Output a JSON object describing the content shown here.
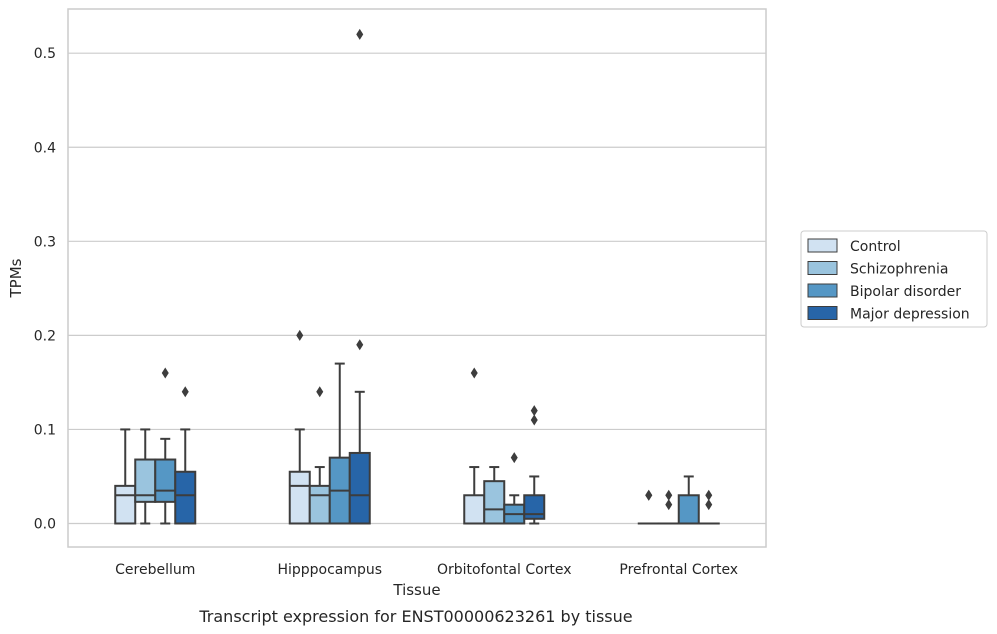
{
  "chart_data": {
    "type": "box",
    "caption": "Transcript expression for ENST00000623261 by tissue",
    "xlabel": "Tissue",
    "ylabel": "TPMs",
    "ylim": [
      -0.025,
      0.547
    ],
    "yticks": [
      0.0,
      0.1,
      0.2,
      0.3,
      0.4,
      0.5
    ],
    "ytick_labels": [
      "0.0",
      "0.1",
      "0.2",
      "0.3",
      "0.4",
      "0.5"
    ],
    "grid": "horizontal",
    "legend_position": "right",
    "categories": [
      "Cerebellum",
      "Hipppocampus",
      "Orbitofontal Cortex",
      "Prefrontal Cortex"
    ],
    "series": [
      {
        "name": "Control",
        "color": "#d1e2f2",
        "boxes": [
          {
            "whisker_low": 0.0,
            "q1": 0.0,
            "median": 0.03,
            "q3": 0.04,
            "whisker_high": 0.1,
            "outliers": []
          },
          {
            "whisker_low": 0.0,
            "q1": 0.0,
            "median": 0.04,
            "q3": 0.055,
            "whisker_high": 0.1,
            "outliers": [
              0.2
            ]
          },
          {
            "whisker_low": 0.0,
            "q1": 0.0,
            "median": 0.0,
            "q3": 0.03,
            "whisker_high": 0.06,
            "outliers": [
              0.16
            ]
          },
          {
            "whisker_low": 0.0,
            "q1": 0.0,
            "median": 0.0,
            "q3": 0.0,
            "whisker_high": 0.0,
            "outliers": [
              0.03,
              0.03
            ]
          }
        ]
      },
      {
        "name": "Schizophrenia",
        "color": "#9ac4de",
        "boxes": [
          {
            "whisker_low": 0.0,
            "q1": 0.023,
            "median": 0.03,
            "q3": 0.068,
            "whisker_high": 0.1,
            "outliers": []
          },
          {
            "whisker_low": 0.0,
            "q1": 0.0,
            "median": 0.03,
            "q3": 0.04,
            "whisker_high": 0.06,
            "outliers": [
              0.14
            ]
          },
          {
            "whisker_low": 0.0,
            "q1": 0.0,
            "median": 0.015,
            "q3": 0.045,
            "whisker_high": 0.06,
            "outliers": []
          },
          {
            "whisker_low": 0.0,
            "q1": 0.0,
            "median": 0.0,
            "q3": 0.0,
            "whisker_high": 0.0,
            "outliers": [
              0.02,
              0.03
            ]
          }
        ]
      },
      {
        "name": "Bipolar disorder",
        "color": "#5597c5",
        "boxes": [
          {
            "whisker_low": 0.0,
            "q1": 0.023,
            "median": 0.035,
            "q3": 0.068,
            "whisker_high": 0.09,
            "outliers": [
              0.16
            ]
          },
          {
            "whisker_low": 0.0,
            "q1": 0.0,
            "median": 0.035,
            "q3": 0.07,
            "whisker_high": 0.17,
            "outliers": []
          },
          {
            "whisker_low": 0.0,
            "q1": 0.0,
            "median": 0.01,
            "q3": 0.02,
            "whisker_high": 0.03,
            "outliers": [
              0.07
            ]
          },
          {
            "whisker_low": 0.0,
            "q1": 0.0,
            "median": 0.0,
            "q3": 0.03,
            "whisker_high": 0.05,
            "outliers": []
          }
        ]
      },
      {
        "name": "Major depression",
        "color": "#2765a8",
        "boxes": [
          {
            "whisker_low": 0.0,
            "q1": 0.0,
            "median": 0.03,
            "q3": 0.055,
            "whisker_high": 0.1,
            "outliers": [
              0.14
            ]
          },
          {
            "whisker_low": 0.0,
            "q1": 0.0,
            "median": 0.03,
            "q3": 0.075,
            "whisker_high": 0.14,
            "outliers": [
              0.19,
              0.52
            ]
          },
          {
            "whisker_low": 0.0,
            "q1": 0.005,
            "median": 0.01,
            "q3": 0.03,
            "whisker_high": 0.05,
            "outliers": [
              0.11,
              0.12
            ]
          },
          {
            "whisker_low": 0.0,
            "q1": 0.0,
            "median": 0.0,
            "q3": 0.0,
            "whisker_high": 0.0,
            "outliers": [
              0.02,
              0.03
            ]
          }
        ]
      }
    ]
  }
}
